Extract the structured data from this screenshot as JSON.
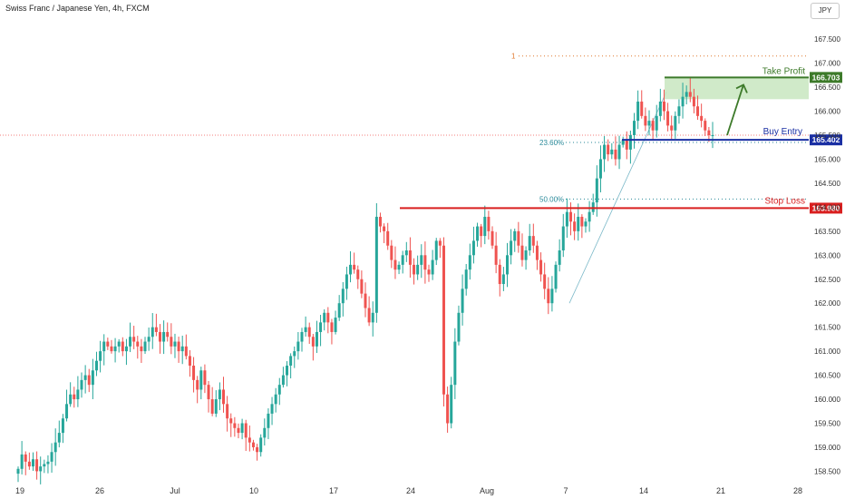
{
  "title": "Swiss Franc / Japanese Yen, 4h, FXCM",
  "currency": "JPY",
  "chart_data": {
    "type": "candlestick",
    "title": "Swiss Franc / Japanese Yen, 4h, FXCM",
    "ylim": [
      158.3,
      167.9
    ],
    "y_ticks": [
      "158.500",
      "159.000",
      "159.500",
      "160.000",
      "160.500",
      "161.000",
      "161.500",
      "162.000",
      "162.500",
      "163.000",
      "163.500",
      "164.000",
      "164.500",
      "165.000",
      "165.500",
      "166.000",
      "166.500",
      "167.000",
      "167.500"
    ],
    "x_labels": [
      "19",
      "26",
      "Jul",
      "10",
      "17",
      "24",
      "Aug",
      "7",
      "14",
      "21",
      "28"
    ],
    "levels": {
      "take_profit": {
        "label": "Take Profit",
        "value": "166.703",
        "color": "#3d7a2a"
      },
      "buy_entry": {
        "label": "Buy Entry",
        "value": "165.402",
        "color": "#1a2fa3"
      },
      "stop_loss": {
        "label": "Stop Loss",
        "value": "163.980",
        "color": "#d91f1f"
      }
    },
    "fib": {
      "one": "1",
      "p236": "23.60%",
      "p50": "50.00%"
    },
    "candle_up_color": "#26a69a",
    "candle_down_color": "#ef5350",
    "price_path": [
      158.55,
      158.85,
      158.7,
      158.6,
      158.75,
      158.5,
      158.6,
      158.65,
      158.7,
      158.9,
      159.1,
      159.3,
      159.6,
      159.9,
      160.1,
      160.0,
      160.2,
      160.4,
      160.5,
      160.3,
      160.6,
      160.8,
      161.0,
      161.2,
      161.1,
      161.0,
      161.1,
      161.2,
      161.0,
      161.1,
      161.3,
      161.2,
      161.1,
      161.0,
      161.2,
      161.3,
      161.5,
      161.4,
      161.2,
      161.4,
      161.3,
      161.1,
      161.2,
      161.0,
      161.1,
      160.9,
      160.7,
      160.4,
      160.2,
      160.6,
      160.3,
      160.0,
      159.7,
      160.0,
      160.2,
      159.9,
      159.6,
      159.5,
      159.4,
      159.3,
      159.5,
      159.2,
      159.1,
      159.0,
      158.9,
      159.2,
      159.4,
      159.7,
      159.9,
      160.1,
      160.3,
      160.5,
      160.7,
      160.9,
      161.0,
      161.2,
      161.4,
      161.5,
      161.3,
      161.1,
      161.4,
      161.6,
      161.8,
      161.6,
      161.4,
      161.7,
      162.0,
      162.3,
      162.6,
      162.8,
      162.7,
      162.5,
      162.2,
      161.9,
      161.6,
      161.8,
      163.8,
      163.6,
      163.5,
      163.2,
      162.9,
      162.7,
      162.8,
      163.0,
      163.1,
      162.8,
      162.6,
      162.8,
      163.0,
      162.7,
      162.6,
      162.9,
      163.3,
      163.2,
      160.1,
      159.5,
      160.3,
      161.2,
      161.8,
      162.3,
      162.7,
      163.0,
      163.3,
      163.6,
      163.4,
      163.8,
      163.5,
      163.2,
      162.8,
      162.4,
      162.6,
      163.0,
      163.3,
      163.5,
      163.2,
      162.9,
      163.1,
      163.4,
      163.2,
      162.9,
      162.6,
      162.3,
      162.0,
      162.3,
      162.8,
      163.1,
      163.6,
      163.9,
      163.7,
      163.5,
      163.8,
      163.6,
      163.7,
      163.9,
      164.1,
      164.6,
      165.0,
      165.3,
      165.1,
      165.2,
      165.0,
      165.3,
      165.4,
      165.2,
      165.5,
      165.8,
      166.2,
      165.9,
      165.7,
      165.8,
      165.6,
      165.9,
      166.2,
      166.0,
      165.7,
      165.6,
      165.9,
      166.1,
      166.3,
      166.4,
      166.3,
      166.1,
      165.9,
      165.8,
      165.6,
      165.5,
      165.5
    ]
  }
}
